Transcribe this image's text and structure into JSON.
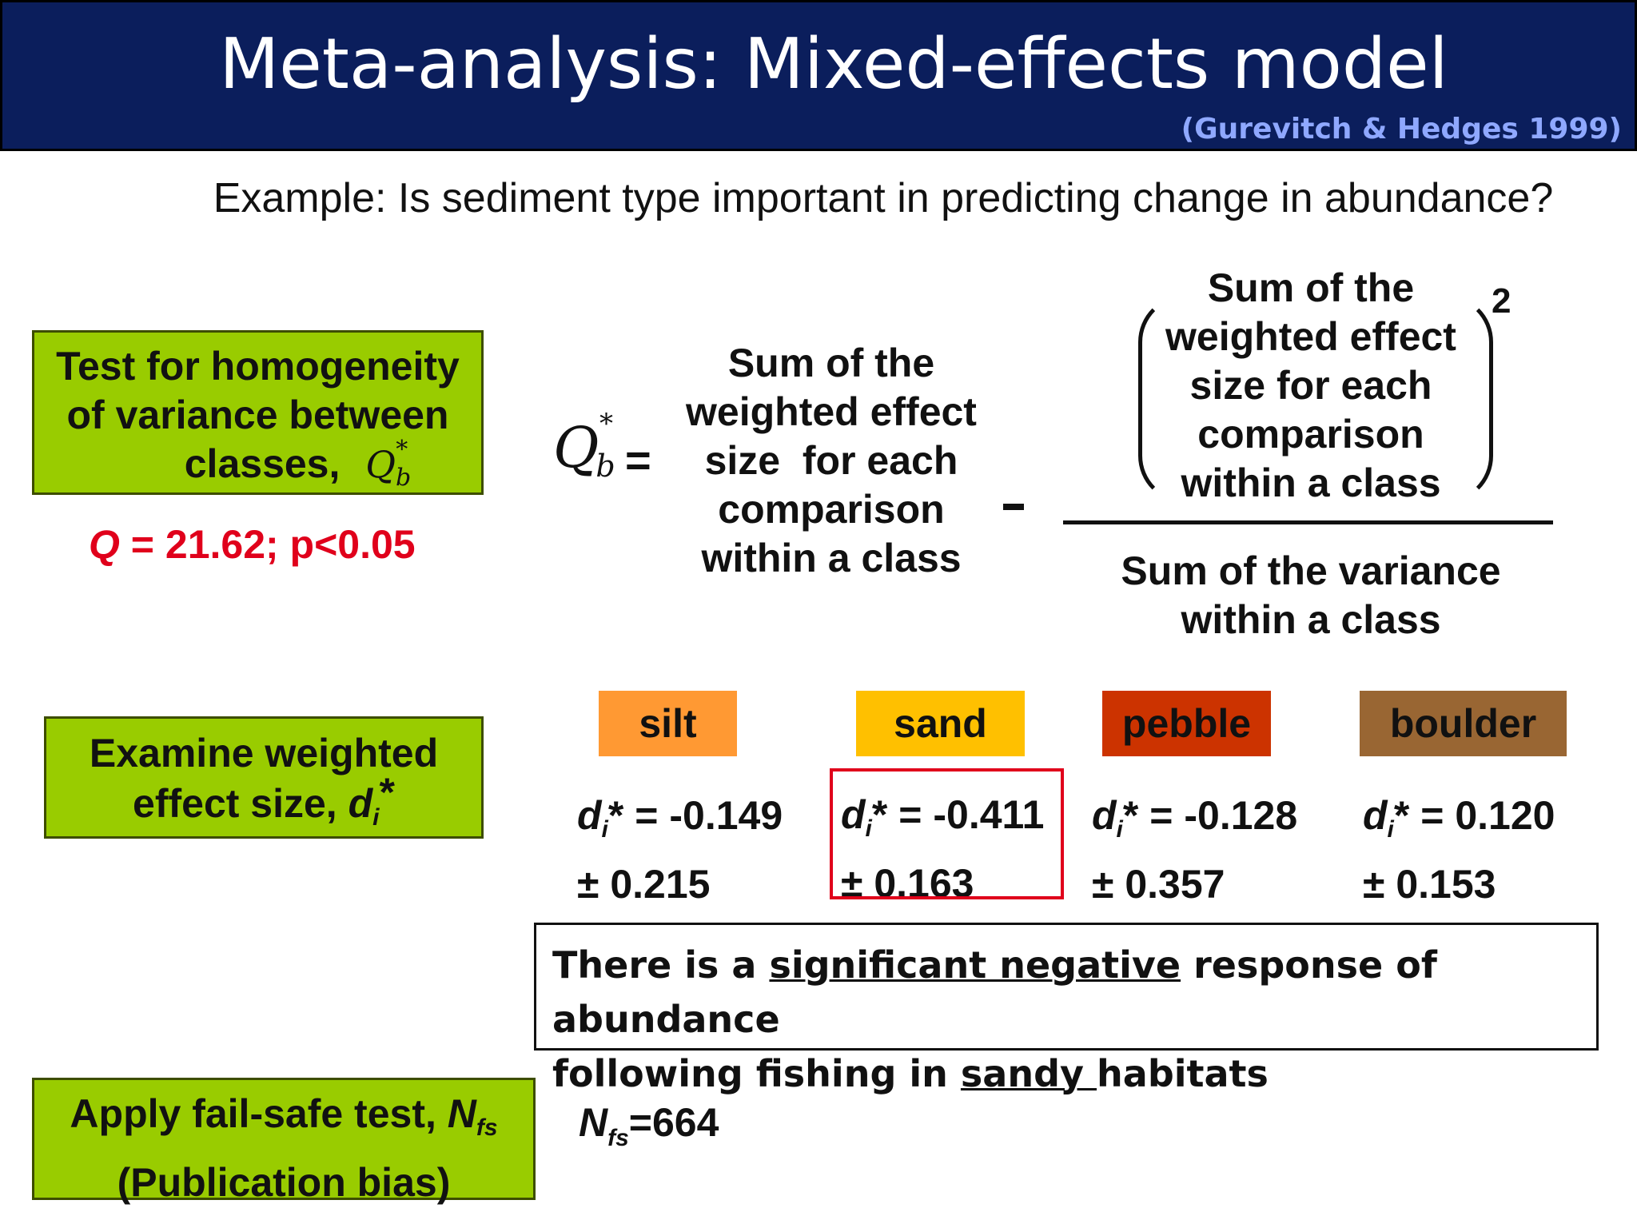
{
  "title": "Meta-analysis: Mixed-effects model",
  "citation": "(Gurevitch & Hedges 1999)",
  "subtitle": "Example: Is sediment type important in predicting change in abundance?",
  "steps": {
    "homogeneity": {
      "line1": "Test for homogeneity",
      "line2": "of variance between",
      "line3": "classes,",
      "symbol_main": "Q",
      "symbol_sub": "b",
      "symbol_sup": "*"
    },
    "effect_size": {
      "line1": "Examine weighted",
      "line2": "effect size, ",
      "symbol_main": "d",
      "symbol_sub": "i",
      "symbol_sup": "*"
    },
    "fail_safe": {
      "line1": "Apply fail-safe test, ",
      "symbol_main": "N",
      "symbol_sub": "fs",
      "line2": "(Publication bias)"
    }
  },
  "q_result": {
    "q": "Q",
    "rest": " = 21.62; p<0.05"
  },
  "equation": {
    "lhs_main": "Q",
    "lhs_sub": "b",
    "lhs_sup": "*",
    "equals": "=",
    "left_term": [
      "Sum of the",
      "weighted effect",
      "size  for each",
      "comparison",
      "within a class"
    ],
    "numerator": [
      "Sum of the",
      "weighted effect",
      "size for each",
      "comparison",
      "within a class"
    ],
    "exponent": "2",
    "denominator": [
      "Sum of the variance",
      "within a class"
    ]
  },
  "categories": [
    {
      "label": "silt",
      "color": "#ff9933",
      "value": "= -0.149",
      "se": "± 0.215"
    },
    {
      "label": "sand",
      "color": "#ffc000",
      "value": "= -0.411",
      "se": "± 0.163"
    },
    {
      "label": "pebble",
      "color": "#cc3300",
      "value": "= -0.128",
      "se": "± 0.357"
    },
    {
      "label": "boulder",
      "color": "#996633",
      "value": "= 0.120",
      "se": "± 0.153"
    }
  ],
  "stat_symbol": {
    "main": "d",
    "sub": "i",
    "sup": "*"
  },
  "highlight_color": "#e0001b",
  "conclusion": {
    "part1": "There is a ",
    "underline1": "significant negative",
    "part2": " response of abundance",
    "part3": "following fishing in ",
    "underline2": "sandy ",
    "part4": "habitats"
  },
  "nfs": {
    "main": "N",
    "sub": "fs",
    "value": "=664"
  }
}
